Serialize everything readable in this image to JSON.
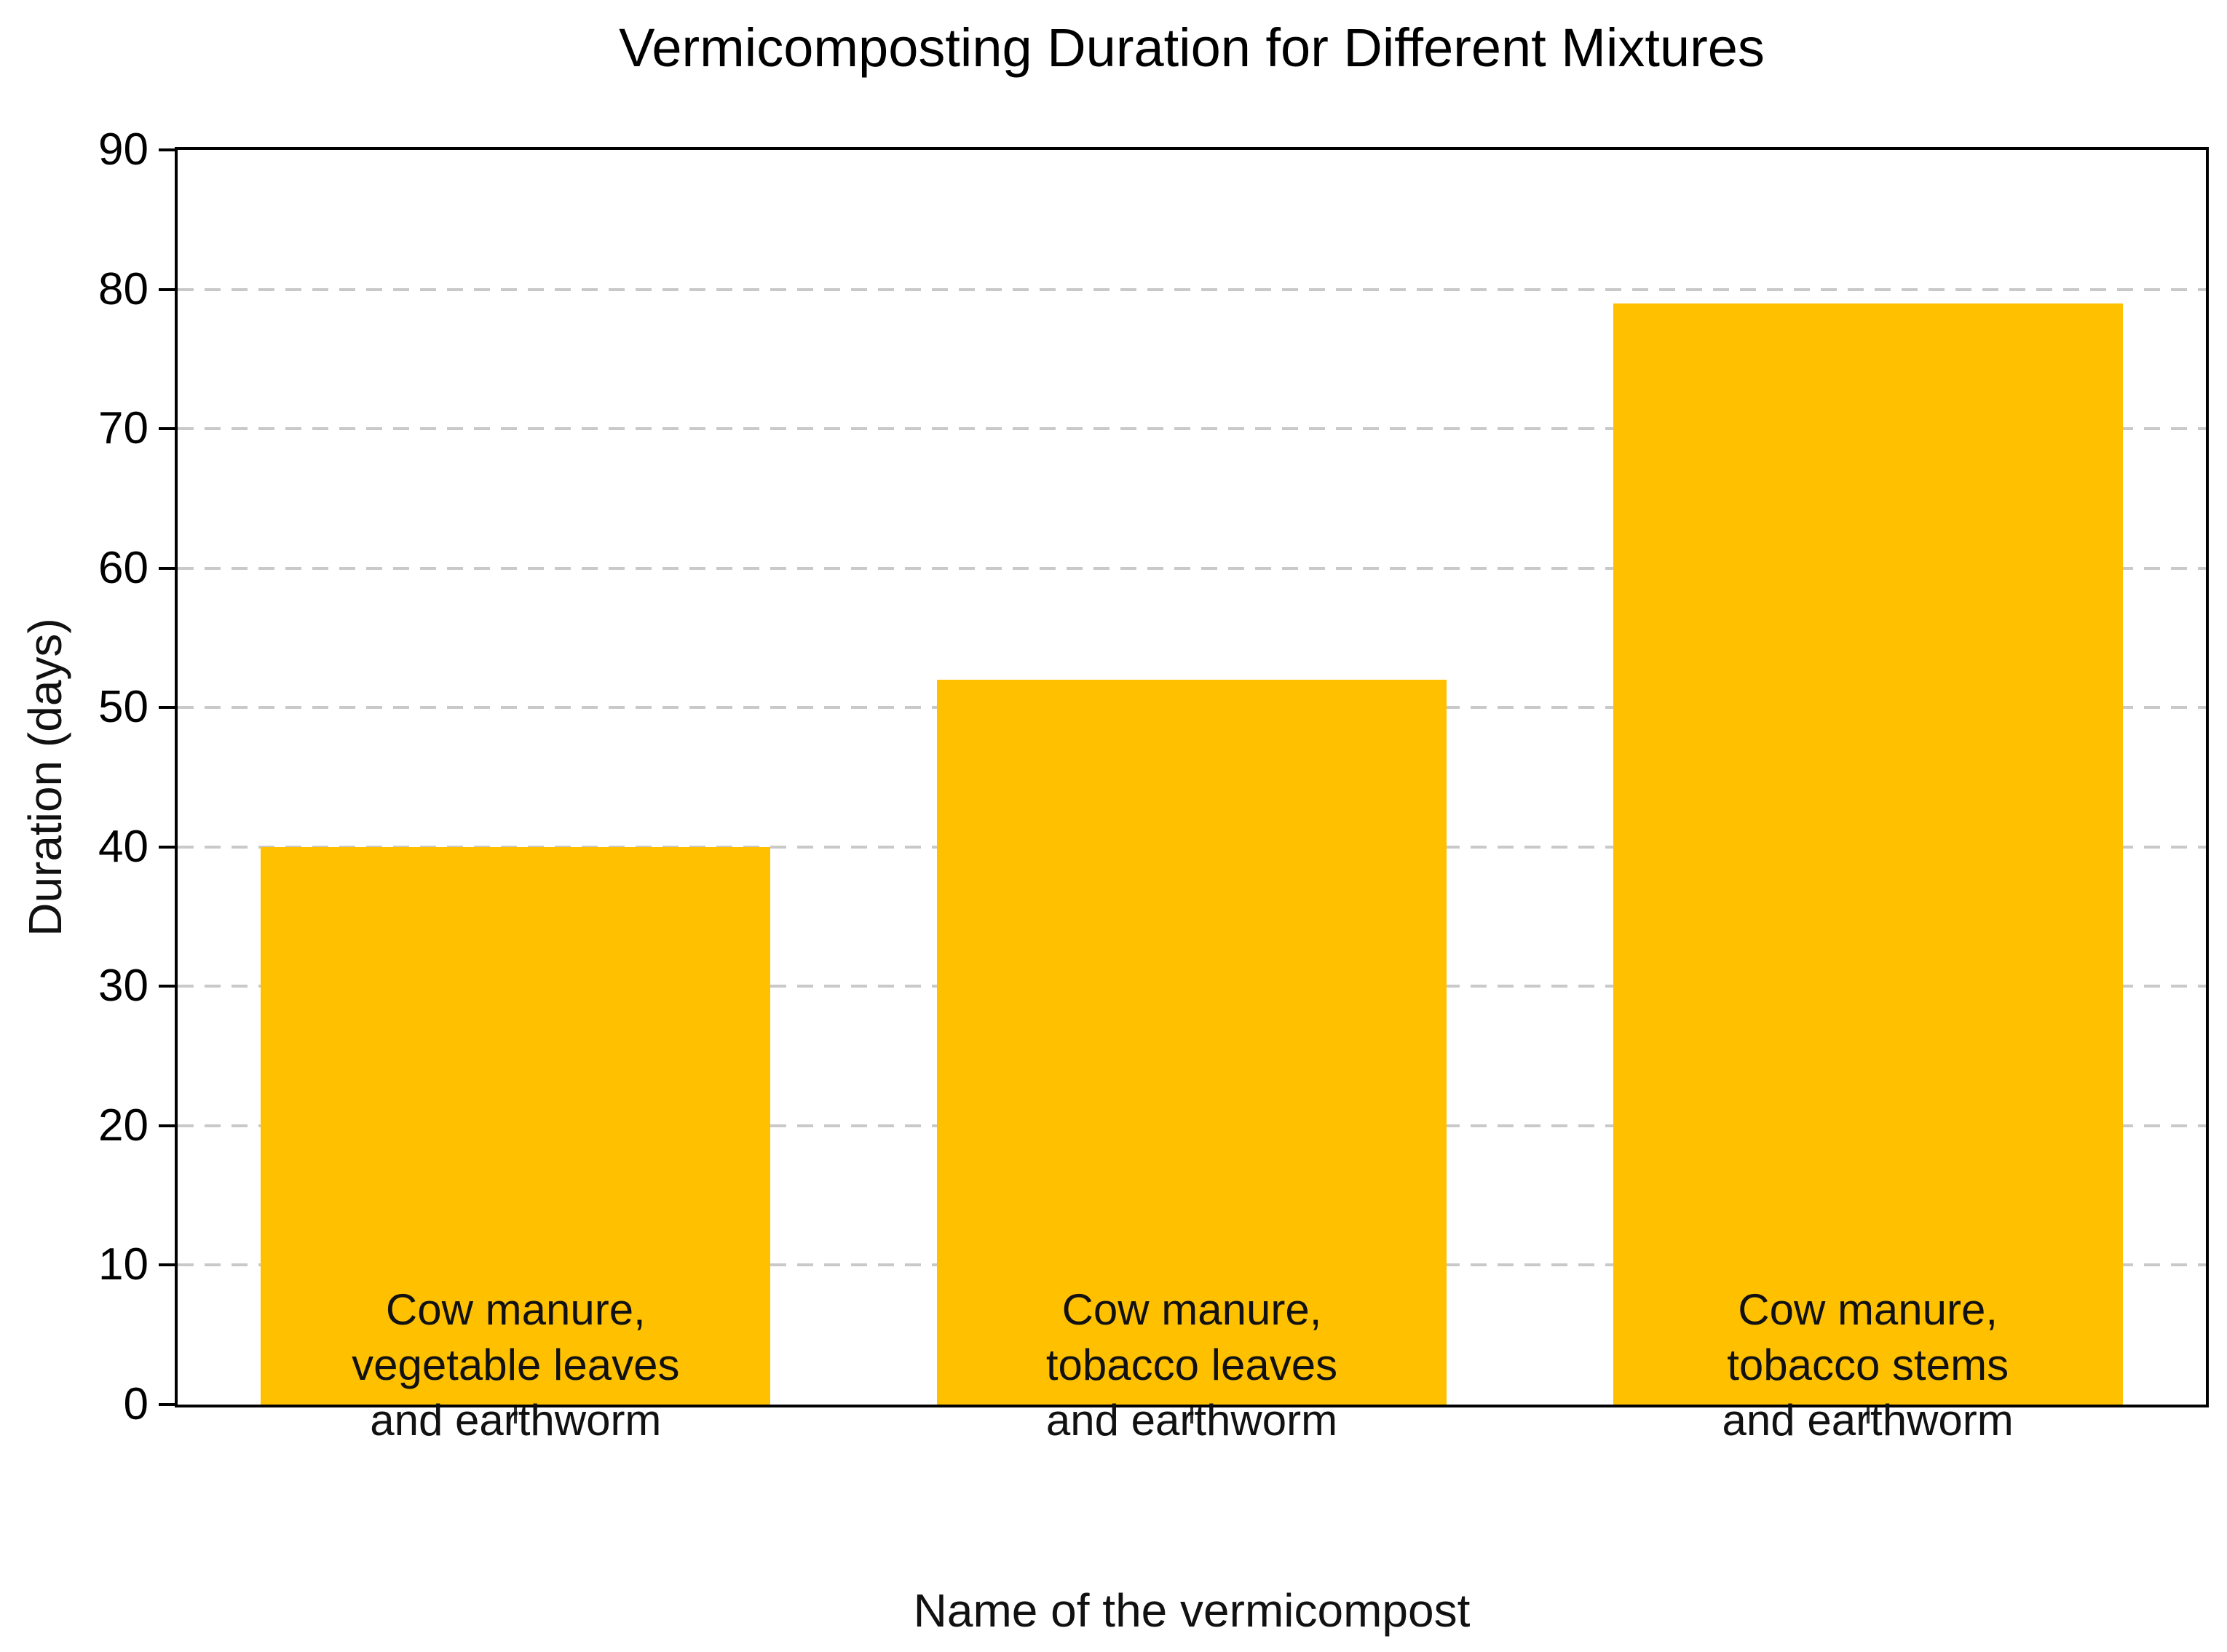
{
  "chart_data": {
    "type": "bar",
    "title": "Vermicomposting Duration for Different Mixtures",
    "xlabel": "Name of the vermicompost",
    "ylabel": "Duration (days)",
    "categories": [
      "Cow manure,\nvegetable leaves\nand earthworm",
      "Cow manure,\ntobacco leaves\nand earthworm",
      "Cow manure,\ntobacco stems\nand earthworm"
    ],
    "values": [
      40,
      52,
      79
    ],
    "ylim": [
      0,
      90
    ],
    "ytick_step": 10,
    "yticks": [
      0,
      10,
      20,
      30,
      40,
      50,
      60,
      70,
      80,
      90
    ],
    "grid": "horizontal-dashed",
    "legend": "none",
    "bar_color": "#FFC000",
    "grid_color": "#c9c9c9",
    "spine_color": "#000000",
    "text_color": "#000000"
  }
}
